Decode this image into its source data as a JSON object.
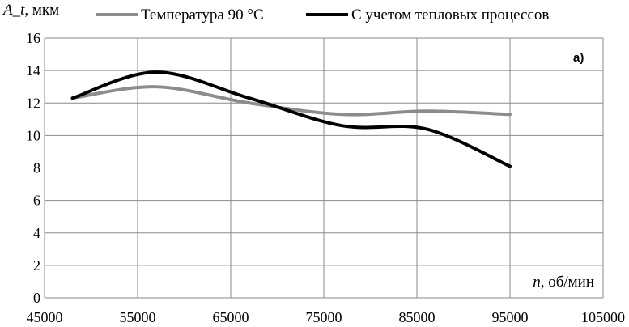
{
  "chart_data": {
    "type": "line",
    "ylabel_var": "A_t",
    "ylabel_unit": ", мкм",
    "xlabel_var": "n",
    "xlabel_unit": ", об/мин",
    "panel_label": "а)",
    "xlim": [
      45000,
      105000
    ],
    "xticks": [
      45000,
      55000,
      65000,
      75000,
      85000,
      95000,
      105000
    ],
    "ylim": [
      0,
      16
    ],
    "yticks": [
      0,
      2,
      4,
      6,
      8,
      10,
      12,
      14,
      16
    ],
    "grid": true,
    "legend_position": "top",
    "series": [
      {
        "name": "Температура 90 °С",
        "color": "#8c8c8c",
        "x": [
          48000,
          57000,
          67000,
          77000,
          86000,
          95000
        ],
        "y": [
          12.3,
          13.0,
          12.0,
          11.3,
          11.5,
          11.3
        ]
      },
      {
        "name": "С учетом тепловых процессов",
        "color": "#000000",
        "x": [
          48000,
          57000,
          67000,
          77000,
          86000,
          95000
        ],
        "y": [
          12.3,
          13.9,
          12.3,
          10.6,
          10.4,
          8.1
        ]
      }
    ]
  }
}
